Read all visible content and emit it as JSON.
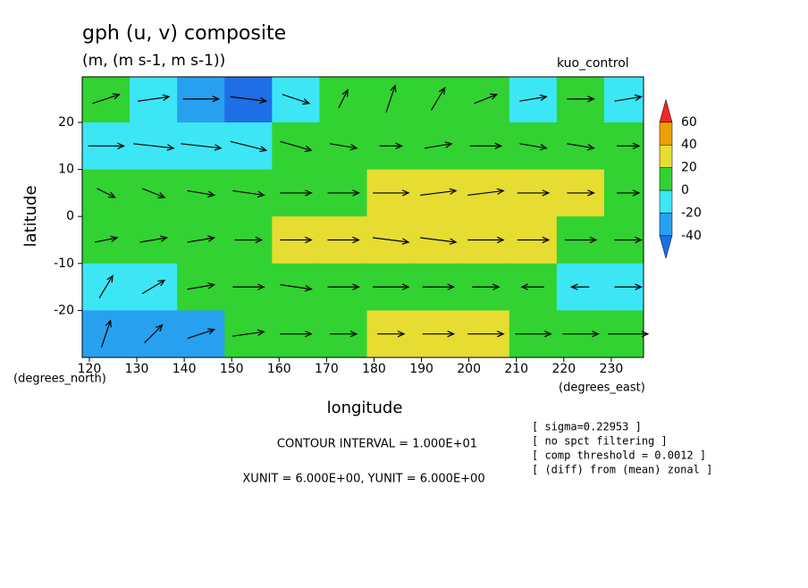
{
  "chart_data": {
    "type": "contour_vector",
    "title": "gph (u, v) composite",
    "subtitle": "(m, (m s-1, m s-1))",
    "label": "kuo_control",
    "xlabel": "longitude",
    "ylabel": "latitude",
    "x_unit_label": "(degrees_east)",
    "y_unit_label": "(degrees_north)",
    "xlim": [
      118.5,
      236.8
    ],
    "ylim": [
      -30,
      29.7
    ],
    "xticks": [
      120,
      130,
      140,
      150,
      160,
      170,
      180,
      190,
      200,
      210,
      220,
      230
    ],
    "yticks": [
      -20,
      -10,
      0,
      10,
      20
    ],
    "gph": {
      "x": [
        123.5,
        133.5,
        143.5,
        153.5,
        163.5,
        173.5,
        183.5,
        193.5,
        203.5,
        213.5,
        223.5,
        233.5
      ],
      "y": [
        25,
        15,
        5,
        -5,
        -15,
        -25
      ],
      "values": [
        [
          5,
          -10,
          -25,
          -45,
          -5,
          5,
          5,
          5,
          5,
          -10,
          5,
          -5
        ],
        [
          -10,
          -10,
          -10,
          -10,
          5,
          5,
          5,
          5,
          5,
          5,
          5,
          5
        ],
        [
          5,
          5,
          5,
          5,
          5,
          5,
          25,
          25,
          25,
          25,
          25,
          5
        ],
        [
          5,
          5,
          5,
          5,
          25,
          25,
          25,
          25,
          25,
          25,
          5,
          5
        ],
        [
          -10,
          -10,
          5,
          5,
          5,
          5,
          5,
          5,
          5,
          5,
          -10,
          -10
        ],
        [
          -30,
          -30,
          -25,
          5,
          5,
          5,
          25,
          25,
          25,
          5,
          5,
          5
        ]
      ]
    },
    "vectors": {
      "x": [
        123.5,
        133.5,
        143.5,
        153.5,
        163.5,
        173.5,
        183.5,
        193.5,
        203.5,
        213.5,
        223.5,
        233.5
      ],
      "y": [
        25,
        15,
        5,
        -5,
        -15,
        -25
      ],
      "u": [
        [
          6,
          7,
          8,
          8,
          6,
          2,
          2,
          3,
          5,
          6,
          6,
          6
        ],
        [
          8,
          9,
          9,
          8,
          7,
          6,
          5,
          6,
          7,
          6,
          6,
          5
        ],
        [
          4,
          5,
          6,
          7,
          7,
          7,
          8,
          8,
          8,
          7,
          6,
          5
        ],
        [
          5,
          6,
          6,
          6,
          7,
          7,
          8,
          8,
          8,
          7,
          7,
          6
        ],
        [
          3,
          5,
          6,
          7,
          7,
          7,
          8,
          7,
          6,
          -5,
          -4,
          6
        ],
        [
          2,
          4,
          6,
          7,
          7,
          6,
          6,
          7,
          8,
          8,
          8,
          9
        ]
      ],
      "v": [
        [
          2,
          1,
          0,
          -1,
          -2,
          4,
          6,
          5,
          2,
          1,
          0,
          1
        ],
        [
          0,
          -1,
          -1,
          -2,
          -2,
          -1,
          0,
          1,
          0,
          -1,
          -1,
          0
        ],
        [
          -2,
          -2,
          -1,
          -1,
          0,
          0,
          0,
          1,
          1,
          0,
          0,
          0
        ],
        [
          1,
          1,
          1,
          0,
          0,
          0,
          -1,
          -1,
          0,
          0,
          0,
          0
        ],
        [
          5,
          3,
          1,
          0,
          -1,
          0,
          0,
          0,
          0,
          0,
          0,
          0
        ],
        [
          6,
          4,
          2,
          1,
          0,
          0,
          0,
          0,
          0,
          0,
          0,
          0
        ]
      ]
    },
    "colorbar": {
      "levels": [
        -40,
        -20,
        0,
        20,
        40,
        60
      ],
      "colors": [
        "#1e6ee6",
        "#28a0f0",
        "#3ce6f5",
        "#32d232",
        "#e6dc32",
        "#f0a000",
        "#f02828"
      ]
    },
    "annotations": [
      "CONTOUR INTERVAL = 1.000E+01",
      "XUNIT = 6.000E+00, YUNIT = 6.000E+00"
    ],
    "notes": [
      "[ sigma=0.22953 ]",
      "[ no spct filtering ]",
      "[ comp threshold = 0.0012 ]",
      "[ (diff) from (mean) zonal ]"
    ]
  }
}
